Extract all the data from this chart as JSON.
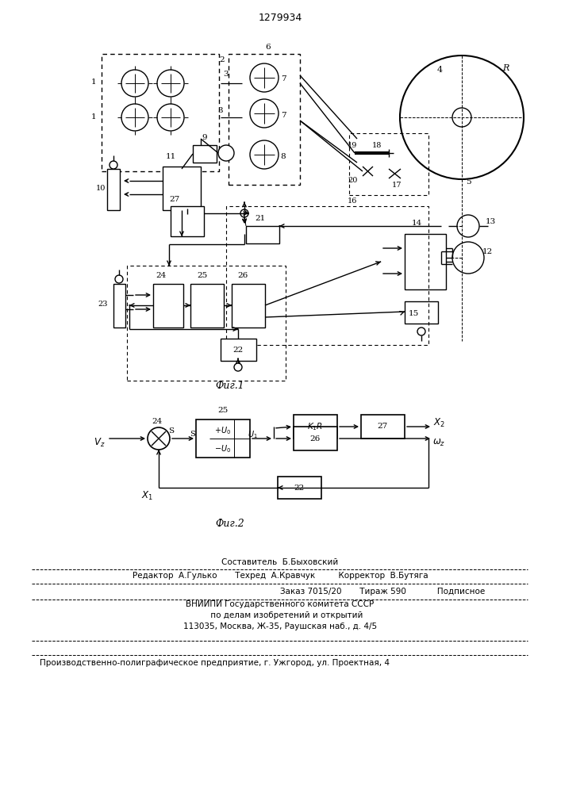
{
  "title": "1279934",
  "fig1_label": "Фиг.1",
  "fig2_label": "Фиг.2",
  "footer_lines": [
    "Составитель  Б.Быховский",
    "Редактор  А.Гулько       Техред  А.Кравчук         Корректор  В.Бутяга",
    "Заказ 7015/20       Тираж 590            Подписное",
    "ВНИИПИ Государственного комитета СССР",
    "     по делам изобретений и открытий",
    "113035, Москва, Ж-35, Раушская наб., д. 4/5",
    "Производственно-полиграфическое предприятие, г. Ужгород, ул. Проектная, 4"
  ],
  "bg_color": "#ffffff"
}
